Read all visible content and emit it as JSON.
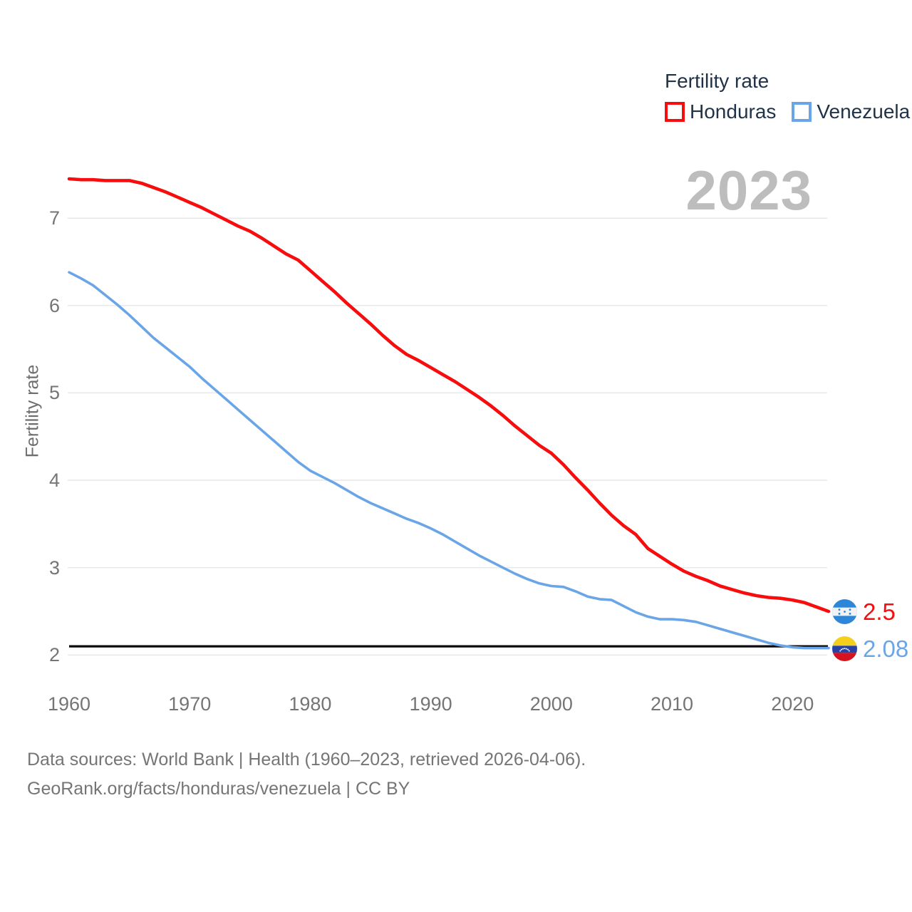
{
  "watermark": "2023",
  "legend": {
    "title": "Fertility rate",
    "series": [
      {
        "label": "Honduras",
        "color": "#f70d0d"
      },
      {
        "label": "Venezuela",
        "color": "#6aa5e8"
      }
    ]
  },
  "end_labels": [
    {
      "country": "Honduras",
      "value": "2.5",
      "color": "#f70d0d",
      "flag_icon": "honduras-flag-icon"
    },
    {
      "country": "Venezuela",
      "value": "2.08",
      "color": "#6aa5e8",
      "flag_icon": "venezuela-flag-icon"
    }
  ],
  "footer": {
    "line1": "Data sources: World Bank | Health (1960–2023, retrieved 2026-04-06).",
    "line2": "GeoRank.org/facts/honduras/venezuela | CC BY"
  },
  "colors": {
    "honduras_line": "#f70d0d",
    "venezuela_line": "#6aa5e8",
    "legend_text": "#1f3247",
    "axis_text": "#757575",
    "gridline": "#e9e9e9",
    "watermark": "#bdbdbd",
    "reference_line": "#0b0b0b"
  },
  "chart_data": {
    "type": "line",
    "title": "2023",
    "ylabel": "Fertility rate",
    "xlabel": "",
    "x_ticks": [
      1960,
      1970,
      1980,
      1990,
      2000,
      2010,
      2020
    ],
    "y_ticks": [
      2,
      3,
      4,
      5,
      6,
      7
    ],
    "xlim": [
      1960,
      2023
    ],
    "ylim": [
      2,
      7.6
    ],
    "grid": true,
    "legend_position": "top-right",
    "reference_line": {
      "value": 2.1,
      "meaning": "replacement level"
    },
    "x": [
      1960,
      1961,
      1962,
      1963,
      1964,
      1965,
      1966,
      1967,
      1968,
      1969,
      1970,
      1971,
      1972,
      1973,
      1974,
      1975,
      1976,
      1977,
      1978,
      1979,
      1980,
      1981,
      1982,
      1983,
      1984,
      1985,
      1986,
      1987,
      1988,
      1989,
      1990,
      1991,
      1992,
      1993,
      1994,
      1995,
      1996,
      1997,
      1998,
      1999,
      2000,
      2001,
      2002,
      2003,
      2004,
      2005,
      2006,
      2007,
      2008,
      2009,
      2010,
      2011,
      2012,
      2013,
      2014,
      2015,
      2016,
      2017,
      2018,
      2019,
      2020,
      2021,
      2022,
      2023
    ],
    "series": [
      {
        "name": "Honduras",
        "color": "#f70d0d",
        "end_value": 2.5,
        "values": [
          7.45,
          7.44,
          7.44,
          7.43,
          7.43,
          7.43,
          7.4,
          7.35,
          7.3,
          7.24,
          7.18,
          7.12,
          7.05,
          6.98,
          6.91,
          6.85,
          6.77,
          6.68,
          6.59,
          6.52,
          6.4,
          6.28,
          6.16,
          6.03,
          5.91,
          5.79,
          5.66,
          5.54,
          5.44,
          5.37,
          5.29,
          5.21,
          5.13,
          5.04,
          4.95,
          4.85,
          4.74,
          4.62,
          4.51,
          4.4,
          4.31,
          4.18,
          4.03,
          3.89,
          3.74,
          3.6,
          3.48,
          3.38,
          3.22,
          3.13,
          3.04,
          2.96,
          2.9,
          2.85,
          2.79,
          2.75,
          2.71,
          2.68,
          2.66,
          2.65,
          2.63,
          2.6,
          2.55,
          2.5
        ]
      },
      {
        "name": "Venezuela",
        "color": "#6aa5e8",
        "end_value": 2.08,
        "values": [
          6.38,
          6.31,
          6.23,
          6.12,
          6.01,
          5.89,
          5.76,
          5.63,
          5.52,
          5.41,
          5.3,
          5.17,
          5.05,
          4.93,
          4.81,
          4.69,
          4.57,
          4.45,
          4.33,
          4.21,
          4.11,
          4.04,
          3.97,
          3.89,
          3.81,
          3.74,
          3.68,
          3.62,
          3.56,
          3.51,
          3.45,
          3.38,
          3.3,
          3.22,
          3.14,
          3.07,
          3.0,
          2.93,
          2.87,
          2.82,
          2.79,
          2.78,
          2.73,
          2.67,
          2.64,
          2.63,
          2.56,
          2.49,
          2.44,
          2.41,
          2.41,
          2.4,
          2.38,
          2.34,
          2.3,
          2.26,
          2.22,
          2.18,
          2.14,
          2.11,
          2.09,
          2.08,
          2.08,
          2.08
        ]
      }
    ]
  }
}
